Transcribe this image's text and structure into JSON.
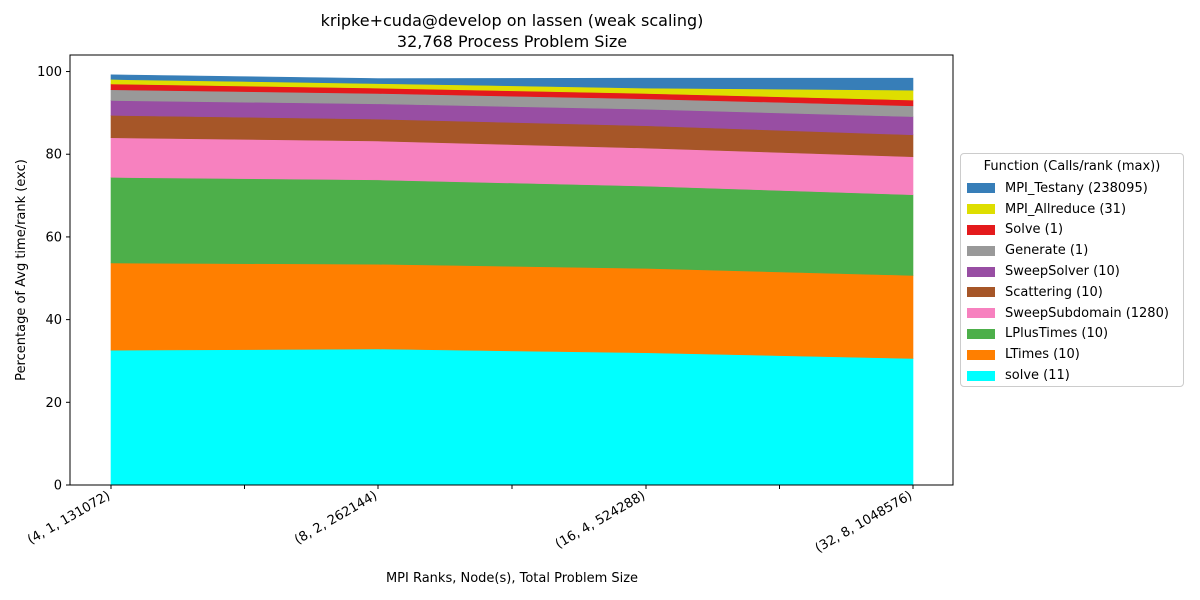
{
  "chart_data": {
    "type": "area",
    "stacked": true,
    "title": "kripke+cuda@develop on lassen (weak scaling)",
    "subtitle": "32,768 Process Problem Size",
    "xlabel": "MPI Ranks, Node(s), Total Problem Size",
    "ylabel": "Percentage of Avg time/rank (exc)",
    "categories": [
      "(4, 1, 131072)",
      "(8, 2, 262144)",
      "(16, 4, 524288)",
      "(32, 8, 1048576)"
    ],
    "ylim": [
      0,
      104
    ],
    "yticks": [
      0,
      20,
      40,
      60,
      80,
      100
    ],
    "grid": false,
    "legend": {
      "title": "Function (Calls/rank (max))",
      "placement": "right"
    },
    "series": [
      {
        "name": "solve (11)",
        "color": "#00ffff",
        "values": [
          32.6,
          32.9,
          32.0,
          30.6
        ]
      },
      {
        "name": "LTimes (10)",
        "color": "#ff7f00",
        "values": [
          21.1,
          20.5,
          20.4,
          20.1
        ]
      },
      {
        "name": "LPlusTimes (10)",
        "color": "#4daf4a",
        "values": [
          20.7,
          20.4,
          19.9,
          19.5
        ]
      },
      {
        "name": "SweepSubdomain (1280)",
        "color": "#f781bf",
        "values": [
          9.6,
          9.4,
          9.2,
          9.2
        ]
      },
      {
        "name": "Scattering (10)",
        "color": "#a65628",
        "values": [
          5.4,
          5.3,
          5.4,
          5.3
        ]
      },
      {
        "name": "SweepSolver (10)",
        "color": "#984ea3",
        "values": [
          3.6,
          3.7,
          4.0,
          4.4
        ]
      },
      {
        "name": "Generate (1)",
        "color": "#999999",
        "values": [
          2.6,
          2.5,
          2.5,
          2.6
        ]
      },
      {
        "name": "Solve (1)",
        "color": "#e41a1c",
        "values": [
          1.4,
          1.3,
          1.3,
          1.4
        ]
      },
      {
        "name": "MPI_Allreduce (31)",
        "color": "#dede00",
        "values": [
          1.1,
          1.1,
          1.3,
          2.4
        ]
      },
      {
        "name": "MPI_Testany (238095)",
        "color": "#377eb8",
        "values": [
          1.1,
          1.2,
          2.4,
          2.9
        ]
      }
    ]
  }
}
